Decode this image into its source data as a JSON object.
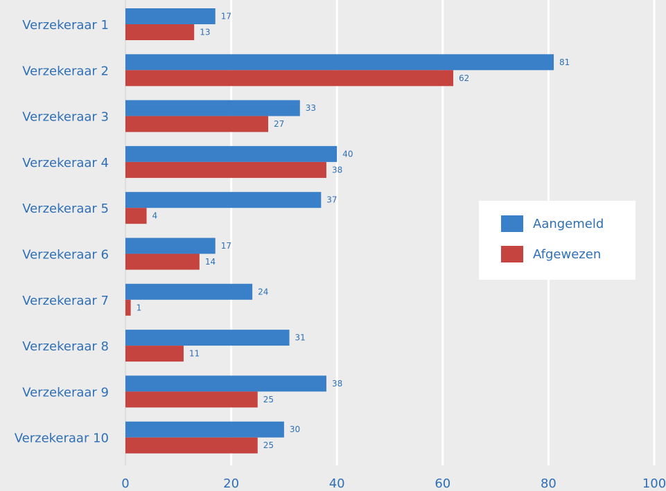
{
  "chart_data": {
    "type": "bar",
    "orientation": "horizontal",
    "categories": [
      "Verzekeraar 1",
      "Verzekeraar 2",
      "Verzekeraar 3",
      "Verzekeraar 4",
      "Verzekeraar 5",
      "Verzekeraar 6",
      "Verzekeraar 7",
      "Verzekeraar 8",
      "Verzekeraar 9",
      "Verzekeraar 10"
    ],
    "series": [
      {
        "name": "Aangemeld",
        "color": "#3a80c9",
        "values": [
          17,
          81,
          33,
          40,
          37,
          17,
          24,
          31,
          38,
          30
        ]
      },
      {
        "name": "Afgewezen",
        "color": "#c5443f",
        "values": [
          13,
          62,
          27,
          38,
          4,
          14,
          1,
          11,
          25,
          25
        ]
      }
    ],
    "xlim": [
      0,
      100
    ],
    "xticks": [
      0,
      20,
      40,
      60,
      80,
      100
    ],
    "grid": "vertical",
    "legend_position": "right",
    "label_color": "#2f6fb5"
  },
  "legend": {
    "items": [
      {
        "label": "Aangemeld",
        "color": "#3a80c9"
      },
      {
        "label": "Afgewezen",
        "color": "#c5443f"
      }
    ]
  }
}
